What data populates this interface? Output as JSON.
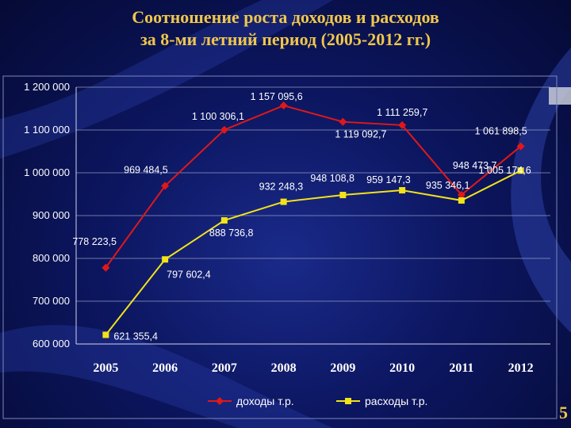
{
  "slide": {
    "title_line1": "Соотношение роста доходов и расходов",
    "title_line2": "за 8-ми летний период (2005-2012 гг.)",
    "page_number": "5"
  },
  "colors": {
    "background": "#0c1660",
    "title": "#f0c64a",
    "income": "#e01818",
    "expenses": "#f2e21a",
    "axis_text": "#ffffff",
    "gridline": "#9aa3c8"
  },
  "chart_data": {
    "type": "line",
    "categories": [
      "2005",
      "2006",
      "2007",
      "2008",
      "2009",
      "2010",
      "2011",
      "2012"
    ],
    "ylim": [
      600000,
      1200000
    ],
    "yticks": [
      {
        "value": 600000,
        "label": "600 000"
      },
      {
        "value": 700000,
        "label": "700 000"
      },
      {
        "value": 800000,
        "label": "800 000"
      },
      {
        "value": 900000,
        "label": "900 000"
      },
      {
        "value": 1000000,
        "label": "1 000 000"
      },
      {
        "value": 1100000,
        "label": "1 100 000"
      },
      {
        "value": 1200000,
        "label": "1 200 000"
      }
    ],
    "grid": true,
    "legend_position": "bottom",
    "series": [
      {
        "name": "доходы т.р.",
        "color": "#e01818",
        "marker": "diamond",
        "values": [
          778223.5,
          969484.5,
          1100306.1,
          1157095.6,
          1119092.7,
          1111259.7,
          948473.7,
          1061898.5
        ],
        "labels": [
          "778 223,5",
          "969 484,5",
          "1 100 306,1",
          "1 157 095,6",
          "1 119 092,7",
          "1 111 259,7",
          "948 473,7",
          "1 061 898,5"
        ]
      },
      {
        "name": "расходы т.р.",
        "color": "#f2e21a",
        "marker": "square",
        "values": [
          621355.4,
          797602.4,
          888736.8,
          932248.3,
          948108.8,
          959147.3,
          935346.1,
          1005174.6
        ],
        "labels": [
          "621 355,4",
          "797 602,4",
          "888 736,8",
          "932 248,3",
          "948 108,8",
          "959 147,3",
          "935 346,1",
          "1 005 174,6"
        ]
      }
    ]
  }
}
